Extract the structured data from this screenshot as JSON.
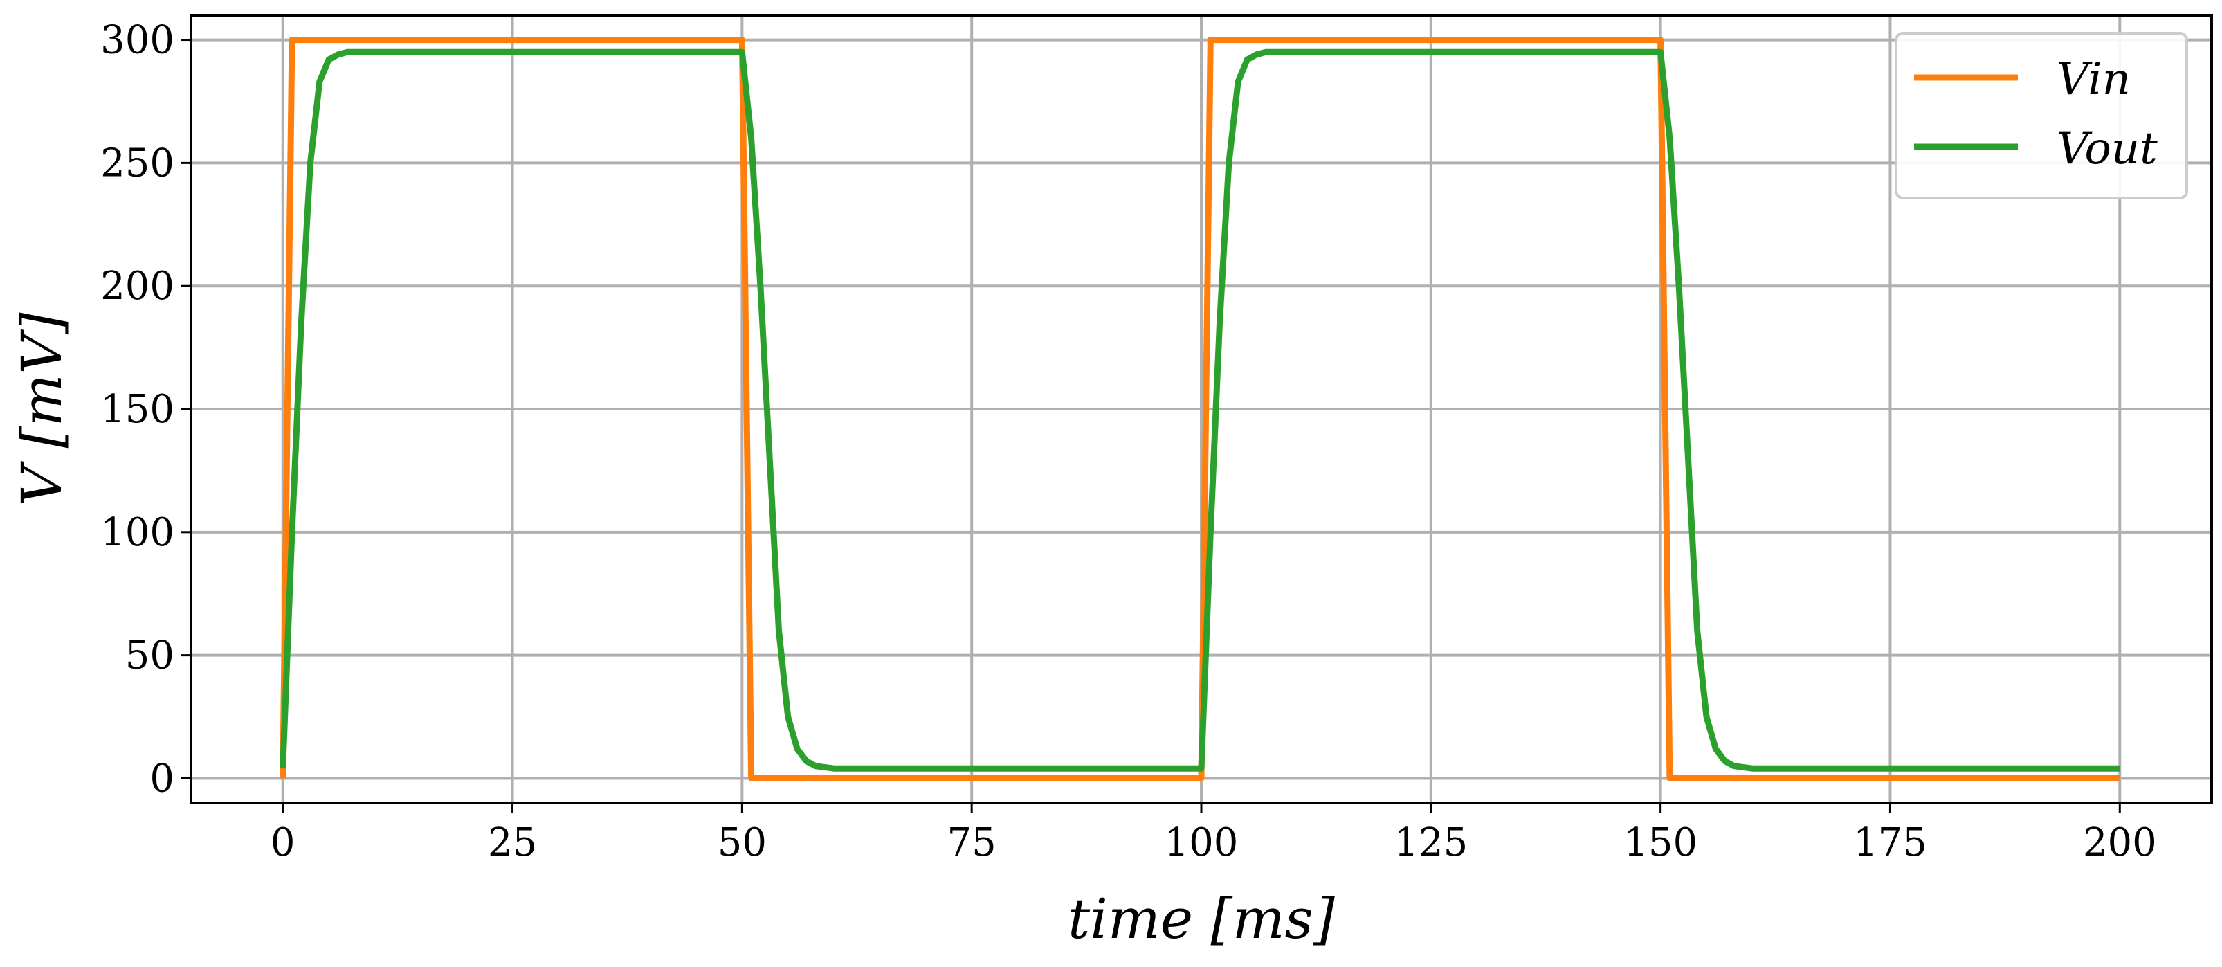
{
  "chart_data": {
    "type": "line",
    "xlabel": "time [ms]",
    "ylabel": "V [mV]",
    "xlim": [
      -10,
      210
    ],
    "ylim": [
      -10,
      310
    ],
    "xticks": [
      0,
      25,
      50,
      75,
      100,
      125,
      150,
      175,
      200
    ],
    "xtick_labels": [
      "0",
      "25",
      "50",
      "75",
      "100",
      "125",
      "150",
      "175",
      "200"
    ],
    "yticks": [
      0,
      50,
      100,
      150,
      200,
      250,
      300
    ],
    "ytick_labels": [
      "0",
      "50",
      "100",
      "150",
      "200",
      "250",
      "300"
    ],
    "grid": true,
    "legend_position": "top-right",
    "series": [
      {
        "name": "Vin",
        "color": "#ff7f0e",
        "x": [
          0,
          1,
          50,
          51,
          100,
          101,
          150,
          151,
          200
        ],
        "y": [
          0,
          300,
          300,
          0,
          0,
          300,
          300,
          0,
          0
        ]
      },
      {
        "name": "Vout",
        "color": "#2ca02c",
        "x": [
          0,
          1,
          2,
          3,
          4,
          5,
          6,
          7,
          8,
          10,
          20,
          30,
          40,
          50,
          51,
          52,
          53,
          54,
          55,
          56,
          57,
          58,
          60,
          70,
          80,
          90,
          100,
          101,
          102,
          103,
          104,
          105,
          106,
          107,
          108,
          110,
          120,
          130,
          140,
          150,
          151,
          152,
          153,
          154,
          155,
          156,
          157,
          158,
          160,
          170,
          180,
          190,
          200
        ],
        "y": [
          4,
          100,
          185,
          250,
          283,
          292,
          294,
          295,
          295,
          295,
          295,
          295,
          295,
          295,
          260,
          200,
          130,
          60,
          25,
          12,
          7,
          5,
          4,
          4,
          4,
          4,
          4,
          100,
          185,
          250,
          283,
          292,
          294,
          295,
          295,
          295,
          295,
          295,
          295,
          295,
          260,
          200,
          130,
          60,
          25,
          12,
          7,
          5,
          4,
          4,
          4,
          4,
          4
        ]
      }
    ]
  }
}
